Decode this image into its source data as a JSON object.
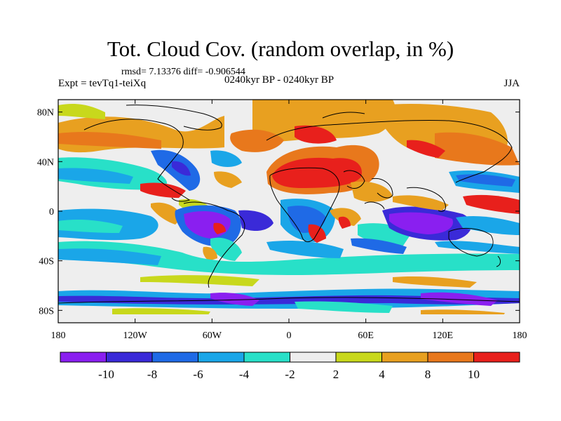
{
  "title": "Tot. Cloud Cov. (random overlap, in %)",
  "stats": "rmsd= 7.13376 diff= -0.906544",
  "experiment": "Expt = tevTq1-teiXq",
  "period": "0240kyr BP - 0240kyr BP",
  "season": "JJA",
  "lat_ticks": [
    {
      "label": "80N",
      "value": 80
    },
    {
      "label": "40N",
      "value": 40
    },
    {
      "label": "0",
      "value": 0
    },
    {
      "label": "40S",
      "value": -40
    },
    {
      "label": "80S",
      "value": -80
    }
  ],
  "lon_ticks": [
    {
      "label": "180",
      "value": -180
    },
    {
      "label": "120W",
      "value": -120
    },
    {
      "label": "60W",
      "value": -60
    },
    {
      "label": "0",
      "value": 0
    },
    {
      "label": "60E",
      "value": 60
    },
    {
      "label": "120E",
      "value": 120
    },
    {
      "label": "180",
      "value": 180
    }
  ],
  "colorbar": {
    "colors": [
      "#8a1ff0",
      "#3a2ad8",
      "#1f6ae6",
      "#1aa6e8",
      "#28e0c8",
      "#eeeeee",
      "#c8d81c",
      "#e8a020",
      "#e8781c",
      "#e8201c"
    ],
    "labels": [
      "-10",
      "-8",
      "-6",
      "-4",
      "-2",
      "2",
      "4",
      "8",
      "10"
    ]
  }
}
